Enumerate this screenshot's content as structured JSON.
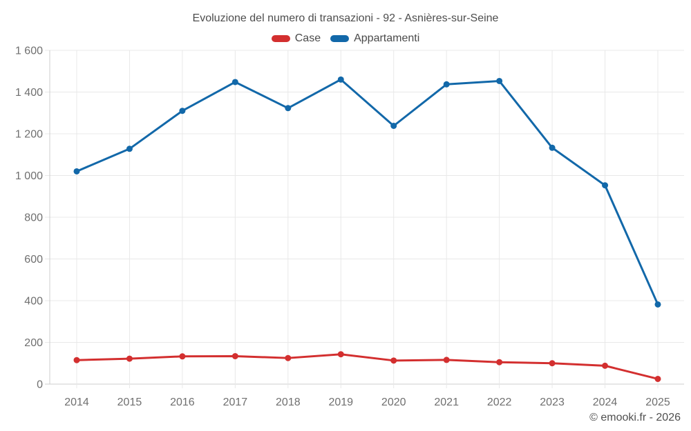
{
  "footer": {
    "attribution": "© emooki.fr - 2026"
  },
  "chart_data": {
    "type": "line",
    "title": "Evoluzione del numero di transazioni - 92 - Asnières-sur-Seine",
    "xlabel": "",
    "ylabel": "",
    "categories": [
      "2014",
      "2015",
      "2016",
      "2017",
      "2018",
      "2019",
      "2020",
      "2021",
      "2022",
      "2023",
      "2024",
      "2025"
    ],
    "series": [
      {
        "name": "Case",
        "color": "#d32f2f",
        "values": [
          115,
          122,
          133,
          134,
          125,
          143,
          113,
          116,
          105,
          100,
          88,
          25
        ]
      },
      {
        "name": "Appartamenti",
        "color": "#1268a9",
        "values": [
          1020,
          1128,
          1310,
          1448,
          1323,
          1460,
          1238,
          1437,
          1453,
          1133,
          953,
          382
        ]
      }
    ],
    "ylim": [
      0,
      1600
    ],
    "ytick_step": 200,
    "ytick_labels": [
      "0",
      "200",
      "400",
      "600",
      "800",
      "1 000",
      "1 200",
      "1 400",
      "1 600"
    ],
    "grid": "on",
    "legend_position": "top"
  }
}
